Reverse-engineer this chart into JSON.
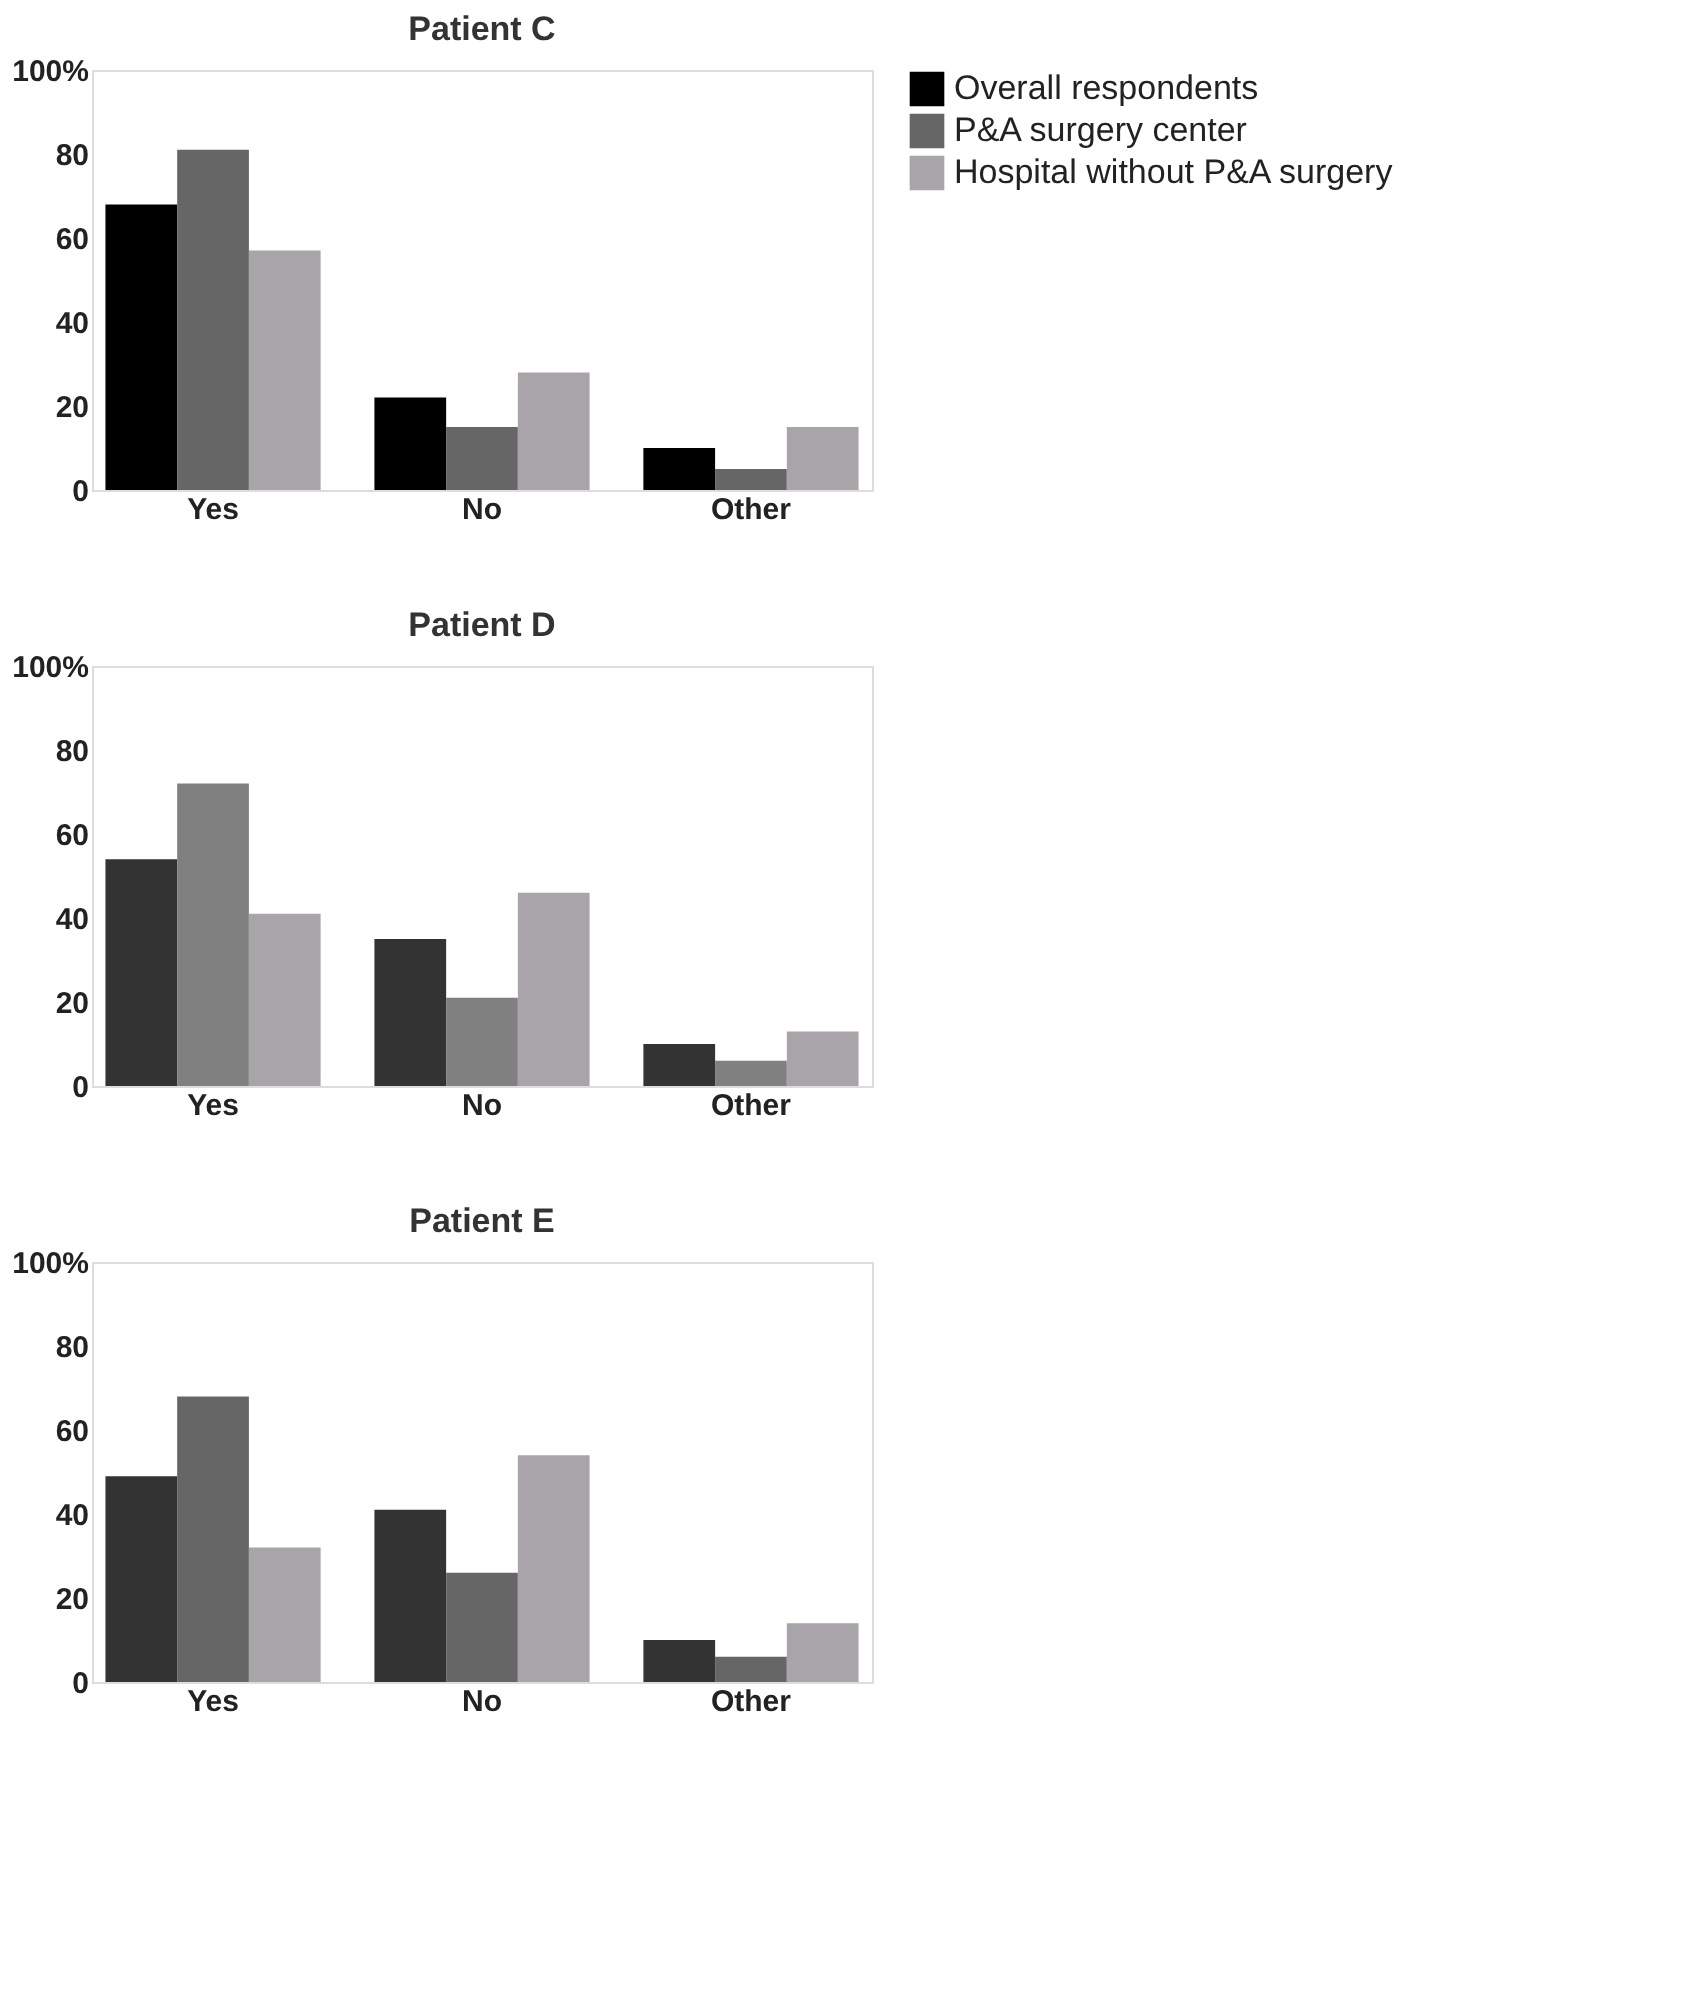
{
  "chart_data": [
    {
      "type": "bar",
      "title": "Patient C",
      "categories": [
        "Yes",
        "No",
        "Other"
      ],
      "ylim": [
        0,
        100
      ],
      "yticks": [
        0,
        20,
        40,
        60,
        80,
        {
          "value": 100,
          "label": "100%"
        }
      ],
      "grid": false,
      "legend": "top right",
      "series": [
        {
          "name": "Overall respondents",
          "color": "#000000",
          "values": [
            68,
            22,
            10
          ]
        },
        {
          "name": "P&A surgery center",
          "color": "#666666",
          "values": [
            81,
            15,
            5
          ]
        },
        {
          "name": "Hospital without P&A surgery",
          "color": "#a8a4a9",
          "values": [
            57,
            28,
            15
          ]
        }
      ]
    },
    {
      "type": "bar",
      "title": "Patient D",
      "categories": [
        "Yes",
        "No",
        "Other"
      ],
      "ylim": [
        0,
        100
      ],
      "yticks": [
        0,
        20,
        40,
        60,
        80,
        {
          "value": 100,
          "label": "100%"
        }
      ],
      "grid": false,
      "series": [
        {
          "color": "#333333",
          "values": [
            54,
            35,
            10
          ]
        },
        {
          "color": "#808080",
          "values": [
            72,
            21,
            6
          ]
        },
        {
          "color": "#a8a4a9",
          "values": [
            41,
            46,
            13
          ]
        }
      ]
    },
    {
      "type": "bar",
      "title": "Patient E",
      "categories": [
        "Yes",
        "No",
        "Other"
      ],
      "ylim": [
        0,
        100
      ],
      "yticks": [
        0,
        20,
        40,
        60,
        80,
        {
          "value": 100,
          "label": "100%"
        }
      ],
      "grid": false,
      "series": [
        {
          "color": "#333333",
          "values": [
            49,
            41,
            10
          ]
        },
        {
          "color": "#666666",
          "values": [
            68,
            26,
            6
          ]
        },
        {
          "color": "#a8a4a9",
          "values": [
            32,
            54,
            14
          ]
        }
      ]
    }
  ]
}
